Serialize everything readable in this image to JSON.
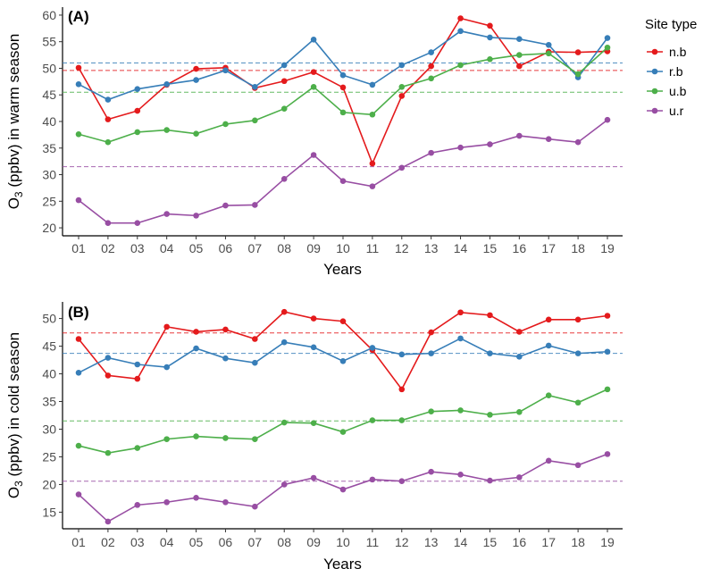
{
  "chart_data": [
    {
      "type": "line",
      "panel_label": "(A)",
      "title": "",
      "xlabel": "Years",
      "ylabel": "O3 (ppbv) in warm season",
      "ylabel_main": "O",
      "ylabel_sub": "3",
      "ylabel_rest": " (ppbv) in warm season",
      "ylim": [
        18.5,
        61.5
      ],
      "yticks": [
        "20",
        "25",
        "30",
        "35",
        "40",
        "45",
        "50",
        "55",
        "60"
      ],
      "categories": [
        "01",
        "02",
        "03",
        "04",
        "05",
        "06",
        "07",
        "08",
        "09",
        "10",
        "11",
        "12",
        "13",
        "14",
        "15",
        "16",
        "17",
        "18",
        "19"
      ],
      "series": [
        {
          "name": "n.b",
          "color": "#e41a1c",
          "mean": 49.6,
          "values": [
            50.1,
            40.4,
            42.0,
            46.9,
            49.9,
            50.1,
            46.3,
            47.6,
            49.3,
            46.4,
            32.1,
            44.8,
            50.4,
            59.4,
            58.0,
            50.4,
            53.1,
            53.0,
            53.2
          ]
        },
        {
          "name": "r.b",
          "color": "#377eb8",
          "mean": 51.0,
          "values": [
            47.0,
            44.1,
            46.1,
            47.0,
            47.8,
            49.6,
            46.5,
            50.6,
            55.4,
            48.7,
            46.9,
            50.6,
            53.0,
            57.0,
            55.8,
            55.5,
            54.4,
            48.3,
            55.7
          ]
        },
        {
          "name": "u.b",
          "color": "#4daf4a",
          "mean": 45.5,
          "values": [
            37.6,
            36.1,
            38.0,
            38.4,
            37.7,
            39.5,
            40.2,
            42.4,
            46.5,
            41.7,
            41.3,
            46.5,
            48.1,
            50.6,
            51.7,
            52.5,
            52.8,
            48.9,
            53.9
          ]
        },
        {
          "name": "u.r",
          "color": "#984ea3",
          "mean": 31.5,
          "values": [
            25.2,
            20.9,
            20.9,
            22.6,
            22.3,
            24.2,
            24.3,
            29.2,
            33.7,
            28.8,
            27.8,
            31.3,
            34.1,
            35.1,
            35.7,
            37.3,
            36.7,
            36.1,
            40.3
          ]
        }
      ]
    },
    {
      "type": "line",
      "panel_label": "(B)",
      "title": "",
      "xlabel": "Years",
      "ylabel": "O3 (ppbv) in cold season",
      "ylabel_main": "O",
      "ylabel_sub": "3",
      "ylabel_rest": " (ppbv) in cold season",
      "ylim": [
        12.0,
        53.0
      ],
      "yticks": [
        "15",
        "20",
        "25",
        "30",
        "35",
        "40",
        "45",
        "50"
      ],
      "categories": [
        "01",
        "02",
        "03",
        "04",
        "05",
        "06",
        "07",
        "08",
        "09",
        "10",
        "11",
        "12",
        "13",
        "14",
        "15",
        "16",
        "17",
        "18",
        "19"
      ],
      "series": [
        {
          "name": "n.b",
          "color": "#e41a1c",
          "mean": 47.4,
          "values": [
            46.3,
            39.7,
            39.1,
            48.5,
            47.6,
            48.0,
            46.3,
            51.2,
            50.0,
            49.5,
            44.3,
            37.2,
            47.5,
            51.1,
            50.6,
            47.6,
            49.8,
            49.8,
            50.5
          ]
        },
        {
          "name": "r.b",
          "color": "#377eb8",
          "mean": 43.7,
          "values": [
            40.2,
            42.9,
            41.7,
            41.2,
            44.6,
            42.8,
            42.0,
            45.7,
            44.8,
            42.3,
            44.7,
            43.5,
            43.7,
            46.4,
            43.7,
            43.1,
            45.1,
            43.7,
            44.0
          ]
        },
        {
          "name": "u.b",
          "color": "#4daf4a",
          "mean": 31.5,
          "values": [
            27.0,
            25.7,
            26.6,
            28.2,
            28.7,
            28.4,
            28.2,
            31.2,
            31.1,
            29.5,
            31.6,
            31.6,
            33.2,
            33.4,
            32.6,
            33.1,
            36.1,
            34.8,
            37.2
          ]
        },
        {
          "name": "u.r",
          "color": "#984ea3",
          "mean": 20.6,
          "values": [
            18.2,
            13.3,
            16.3,
            16.8,
            17.6,
            16.8,
            16.0,
            20.0,
            21.2,
            19.1,
            20.9,
            20.6,
            22.3,
            21.8,
            20.7,
            21.3,
            24.3,
            23.5,
            25.5
          ]
        }
      ]
    }
  ],
  "legend": {
    "title": "Site type",
    "items": [
      {
        "label": "n.b",
        "color": "#e41a1c"
      },
      {
        "label": "r.b",
        "color": "#377eb8"
      },
      {
        "label": "u.b",
        "color": "#4daf4a"
      },
      {
        "label": "u.r",
        "color": "#984ea3"
      }
    ]
  }
}
